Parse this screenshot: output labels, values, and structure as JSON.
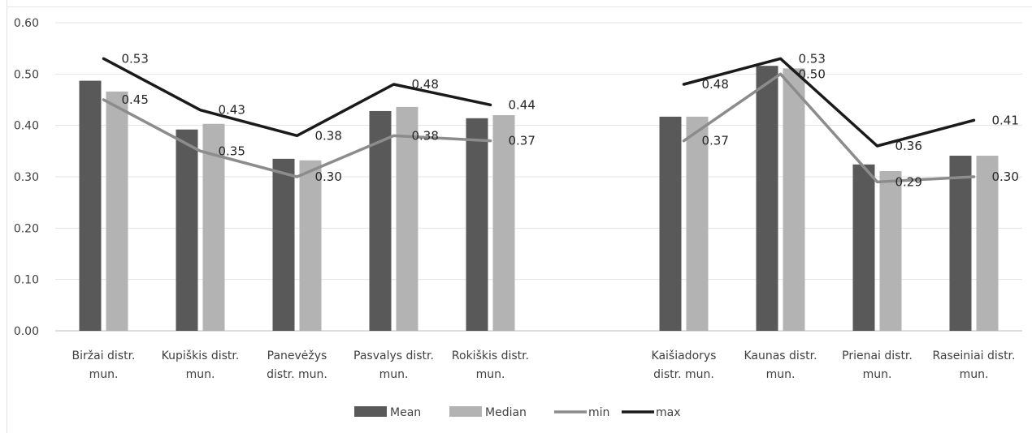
{
  "chart_data": {
    "type": "bar",
    "title": "",
    "xlabel": "",
    "ylabel": "",
    "ylim": [
      0,
      0.6
    ],
    "yticks": [
      "0.00",
      "0.10",
      "0.20",
      "0.30",
      "0.40",
      "0.50",
      "0.60"
    ],
    "grid": true,
    "legend_position": "bottom",
    "groups": [
      {
        "categories": [
          [
            "Biržai distr.",
            "mun."
          ],
          [
            "Kupiškis distr.",
            "mun."
          ],
          [
            "Panevėžys",
            "distr. mun."
          ],
          [
            "Pasvalys distr.",
            "mun."
          ],
          [
            "Rokiškis distr.",
            "mun."
          ]
        ],
        "series": [
          {
            "name": "Mean",
            "type": "bar",
            "color": "#595959",
            "values": [
              0.487,
              0.392,
              0.335,
              0.428,
              0.414
            ]
          },
          {
            "name": "Median",
            "type": "bar",
            "color": "#b3b3b3",
            "values": [
              0.466,
              0.403,
              0.332,
              0.436,
              0.42
            ]
          },
          {
            "name": "min",
            "type": "line",
            "color": "#8c8c8c",
            "values": [
              0.45,
              0.35,
              0.3,
              0.38,
              0.37
            ],
            "labels": [
              "0.45",
              "0.35",
              "0.30",
              "0.38",
              "0.37"
            ]
          },
          {
            "name": "max",
            "type": "line",
            "color": "#1a1a1a",
            "values": [
              0.53,
              0.43,
              0.38,
              0.48,
              0.44
            ],
            "labels": [
              "0.53",
              "0.43",
              "0.38",
              "0.48",
              "0.44"
            ]
          }
        ]
      },
      {
        "categories": [
          [
            "Kaišiadorys",
            "distr. mun."
          ],
          [
            "Kaunas distr.",
            "mun."
          ],
          [
            "Prienai distr.",
            "mun."
          ],
          [
            "Raseiniai distr.",
            "mun."
          ]
        ],
        "series": [
          {
            "name": "Mean",
            "type": "bar",
            "color": "#595959",
            "values": [
              0.417,
              0.516,
              0.324,
              0.341
            ]
          },
          {
            "name": "Median",
            "type": "bar",
            "color": "#b3b3b3",
            "values": [
              0.417,
              0.511,
              0.311,
              0.341
            ]
          },
          {
            "name": "min",
            "type": "line",
            "color": "#8c8c8c",
            "values": [
              0.37,
              0.5,
              0.29,
              0.3
            ],
            "labels": [
              "0.37",
              "0.50",
              "0.29",
              "0.30"
            ]
          },
          {
            "name": "max",
            "type": "line",
            "color": "#1a1a1a",
            "values": [
              0.48,
              0.53,
              0.36,
              0.41
            ],
            "labels": [
              "0.48",
              "0.53",
              "0.36",
              "0.41"
            ]
          }
        ]
      }
    ],
    "legend": [
      {
        "name": "Mean",
        "kind": "bar",
        "color": "#595959"
      },
      {
        "name": "Median",
        "kind": "bar",
        "color": "#b3b3b3"
      },
      {
        "name": "min",
        "kind": "line",
        "color": "#8c8c8c"
      },
      {
        "name": "max",
        "kind": "line",
        "color": "#1a1a1a"
      }
    ]
  }
}
